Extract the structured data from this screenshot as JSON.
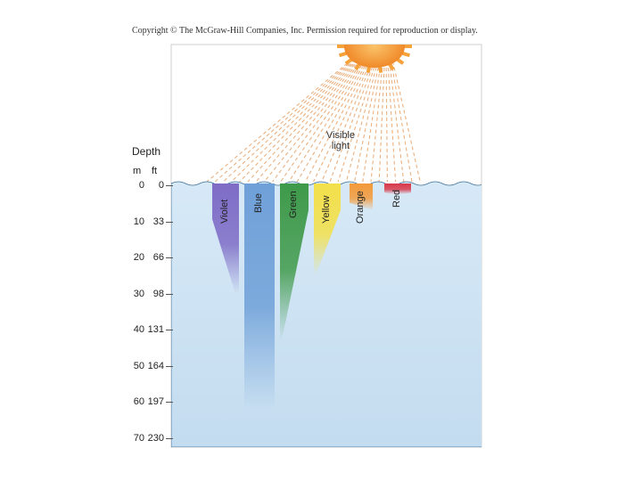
{
  "copyright": "Copyright © The McGraw-Hill Companies, Inc. Permission required for reproduction or display.",
  "labels": {
    "depth": "Depth",
    "unit_m": "m",
    "unit_ft": "ft",
    "visible_light_line1": "Visible",
    "visible_light_line2": "light"
  },
  "depth_ticks": [
    {
      "m": "0",
      "ft": "0"
    },
    {
      "m": "10",
      "ft": "33"
    },
    {
      "m": "20",
      "ft": "66"
    },
    {
      "m": "30",
      "ft": "98"
    },
    {
      "m": "40",
      "ft": "131"
    },
    {
      "m": "50",
      "ft": "164"
    },
    {
      "m": "60",
      "ft": "197"
    },
    {
      "m": "70",
      "ft": "230"
    }
  ],
  "bands": [
    {
      "name": "Violet",
      "color": "#7e6cc6",
      "depth_m": 30
    },
    {
      "name": "Blue",
      "color": "#6fa0d8",
      "depth_m": 62
    },
    {
      "name": "Green",
      "color": "#3f9a4a",
      "depth_m": 43
    },
    {
      "name": "Yellow",
      "color": "#f3e04a",
      "depth_m": 25
    },
    {
      "name": "Orange",
      "color": "#f39a3a",
      "depth_m": 5
    },
    {
      "name": "Red",
      "color": "#d83a4c",
      "depth_m": 2
    }
  ],
  "colors": {
    "water": "#cfe4f4",
    "sky": "#ffffff",
    "sun": "#f6a23a",
    "rays": "#e7a46b"
  }
}
